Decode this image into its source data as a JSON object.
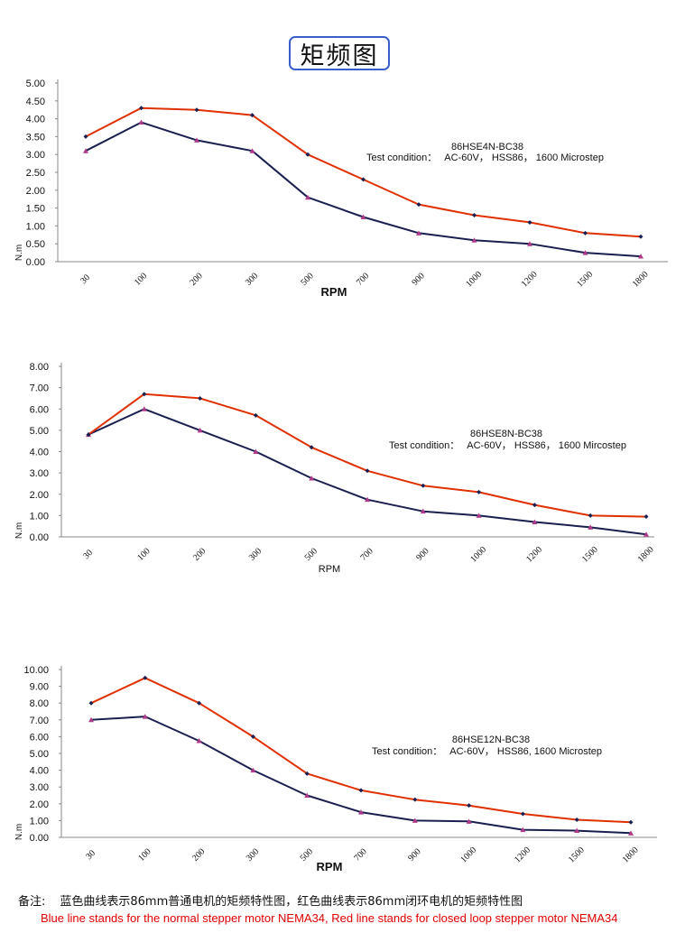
{
  "page_title": "矩频图",
  "chart_data": [
    {
      "type": "line",
      "title": "86HSE4N-BC38",
      "condition_label": "Test condition：",
      "condition_value": "AC-60V，  HSS86，  1600 Microstep",
      "xlabel": "RPM",
      "ylabel": "N.m",
      "ylim": [
        0,
        5
      ],
      "yticks": [
        "0.00",
        "0.50",
        "1.00",
        "1.50",
        "2.00",
        "2.50",
        "3.00",
        "3.50",
        "4.00",
        "4.50",
        "5.00"
      ],
      "categories": [
        "30",
        "100",
        "200",
        "300",
        "500",
        "700",
        "900",
        "1000",
        "1200",
        "1500",
        "1800"
      ],
      "series": [
        {
          "name": "closed loop stepper motor NEMA34",
          "color": "#e03000",
          "values": [
            3.5,
            4.3,
            4.25,
            4.1,
            3.0,
            2.3,
            1.6,
            1.3,
            1.1,
            0.8,
            0.7
          ]
        },
        {
          "name": "normal stepper motor NEMA34",
          "color": "#1a1f50",
          "values": [
            3.1,
            3.9,
            3.4,
            3.1,
            1.8,
            1.25,
            0.8,
            0.6,
            0.5,
            0.25,
            0.15
          ]
        }
      ]
    },
    {
      "type": "line",
      "title": "86HSE8N-BC38",
      "condition_label": "Test condition：",
      "condition_value": "AC-60V， HSS86，  1600 Mircostep",
      "xlabel": "RPM",
      "ylabel": "N.m",
      "ylim": [
        0,
        8
      ],
      "yticks": [
        "0.00",
        "1.00",
        "2.00",
        "3.00",
        "4.00",
        "5.00",
        "6.00",
        "7.00",
        "8.00"
      ],
      "categories": [
        "30",
        "100",
        "200",
        "300",
        "500",
        "700",
        "900",
        "1000",
        "1200",
        "1500",
        "1800"
      ],
      "series": [
        {
          "name": "closed loop stepper motor NEMA34",
          "color": "#e03000",
          "values": [
            4.8,
            6.7,
            6.5,
            5.7,
            4.2,
            3.1,
            2.4,
            2.1,
            1.5,
            1.0,
            0.95
          ]
        },
        {
          "name": "normal stepper motor NEMA34",
          "color": "#1a1f50",
          "values": [
            4.8,
            6.0,
            5.0,
            4.0,
            2.75,
            1.75,
            1.2,
            1.0,
            0.7,
            0.45,
            0.12
          ]
        }
      ]
    },
    {
      "type": "line",
      "title": "86HSE12N-BC38",
      "condition_label": "Test condition：",
      "condition_value": "AC-60V，  HSS86, 1600 Microstep",
      "xlabel": "RPM",
      "ylabel": "N.m",
      "ylim": [
        0,
        10
      ],
      "yticks": [
        "0.00",
        "1.00",
        "2.00",
        "3.00",
        "4.00",
        "5.00",
        "6.00",
        "7.00",
        "8.00",
        "9.00",
        "10.00"
      ],
      "categories": [
        "30",
        "100",
        "200",
        "300",
        "500",
        "700",
        "900",
        "1000",
        "1200",
        "1500",
        "1800"
      ],
      "series": [
        {
          "name": "closed loop stepper motor NEMA34",
          "color": "#e03000",
          "values": [
            8.0,
            9.5,
            8.0,
            6.0,
            3.8,
            2.8,
            2.25,
            1.9,
            1.4,
            1.05,
            0.9
          ]
        },
        {
          "name": "normal stepper motor NEMA34",
          "color": "#1a1f50",
          "values": [
            7.0,
            7.2,
            5.75,
            4.0,
            2.5,
            1.5,
            1.0,
            0.95,
            0.45,
            0.4,
            0.25
          ]
        }
      ]
    }
  ],
  "notes": {
    "cn_label": "备注:",
    "cn_text": "蓝色曲线表示86mm普通电机的矩频特性图，红色曲线表示86mm闭环电机的矩频特性图",
    "en_text": "Blue line stands for the normal stepper motor NEMA34, Red line stands for closed loop stepper motor NEMA34"
  }
}
